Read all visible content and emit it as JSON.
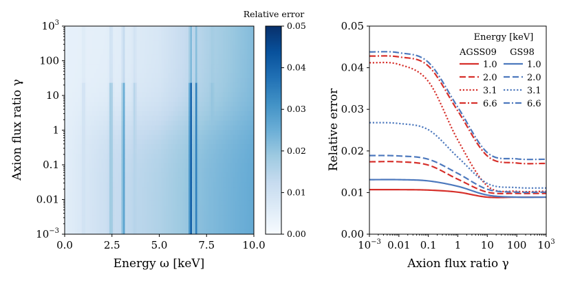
{
  "chart_data": [
    {
      "type": "heatmap",
      "title": "",
      "xlabel": "Energy ω [keV]",
      "ylabel": "Axion flux ratio γ",
      "xlim": [
        0.0,
        10.0
      ],
      "ylim": [
        0.001,
        1000
      ],
      "yscale": "log",
      "x_ticks": [
        {
          "value": 0.0,
          "label": "0.0"
        },
        {
          "value": 2.5,
          "label": "2.5"
        },
        {
          "value": 5.0,
          "label": "5.0"
        },
        {
          "value": 7.5,
          "label": "7.5"
        },
        {
          "value": 10.0,
          "label": "10.0"
        }
      ],
      "y_ticks": [
        {
          "value": 0.001,
          "label": "10",
          "sup": "−3"
        },
        {
          "value": 0.01,
          "label": "0.01",
          "sup": ""
        },
        {
          "value": 0.1,
          "label": "0.1",
          "sup": ""
        },
        {
          "value": 1,
          "label": "1",
          "sup": ""
        },
        {
          "value": 10,
          "label": "10",
          "sup": ""
        },
        {
          "value": 100,
          "label": "100",
          "sup": ""
        },
        {
          "value": 1000,
          "label": "10",
          "sup": "3"
        }
      ],
      "colorbar": {
        "title": "Relative error",
        "range": [
          0.0,
          0.05
        ],
        "ticks": [
          {
            "value": 0.0,
            "label": "0.00"
          },
          {
            "value": 0.01,
            "label": "0.01"
          },
          {
            "value": 0.02,
            "label": "0.02"
          },
          {
            "value": 0.03,
            "label": "0.03"
          },
          {
            "value": 0.04,
            "label": "0.04"
          },
          {
            "value": 0.05,
            "label": "0.05"
          }
        ],
        "colormap": [
          "#f7fbff",
          "#deebf7",
          "#c6dbef",
          "#9ecae1",
          "#6baed6",
          "#4292c6",
          "#2171b5",
          "#08519c",
          "#08306b"
        ]
      },
      "field": {
        "energy_trend": [
          {
            "energy": 0.0,
            "low_gamma": 0.005,
            "high_gamma": 0.004
          },
          {
            "energy": 2.5,
            "low_gamma": 0.012,
            "high_gamma": 0.005
          },
          {
            "energy": 5.0,
            "low_gamma": 0.016,
            "high_gamma": 0.008
          },
          {
            "energy": 7.5,
            "low_gamma": 0.022,
            "high_gamma": 0.016
          },
          {
            "energy": 10.0,
            "low_gamma": 0.026,
            "high_gamma": 0.022
          }
        ],
        "spectral_lines": [
          {
            "energy": 1.0,
            "peak": 0.01
          },
          {
            "energy": 2.45,
            "peak": 0.02
          },
          {
            "energy": 3.1,
            "peak": 0.035
          },
          {
            "energy": 3.7,
            "peak": 0.015
          },
          {
            "energy": 6.65,
            "peak": 0.05
          },
          {
            "energy": 6.95,
            "peak": 0.035
          },
          {
            "energy": 7.8,
            "peak": 0.02
          }
        ]
      }
    },
    {
      "type": "line",
      "title": "",
      "xlabel": "Axion flux ratio γ",
      "ylabel": "Relative error",
      "xscale": "log",
      "xlim": [
        0.001,
        1000
      ],
      "ylim": [
        0.0,
        0.05
      ],
      "x_ticks": [
        {
          "value": 0.001,
          "label": "10",
          "sup": "−3"
        },
        {
          "value": 0.01,
          "label": "0.01",
          "sup": ""
        },
        {
          "value": 0.1,
          "label": "0.1",
          "sup": ""
        },
        {
          "value": 1,
          "label": "1",
          "sup": ""
        },
        {
          "value": 10,
          "label": "10",
          "sup": ""
        },
        {
          "value": 100,
          "label": "100",
          "sup": ""
        },
        {
          "value": 1000,
          "label": "10",
          "sup": "3"
        }
      ],
      "y_ticks": [
        {
          "value": 0.0,
          "label": "0.00"
        },
        {
          "value": 0.01,
          "label": "0.01"
        },
        {
          "value": 0.02,
          "label": "0.02"
        },
        {
          "value": 0.03,
          "label": "0.03"
        },
        {
          "value": 0.04,
          "label": "0.04"
        },
        {
          "value": 0.05,
          "label": "0.05"
        }
      ],
      "legend": {
        "title": "Energy [keV]",
        "column_titles": [
          "AGSS09",
          "GS98"
        ],
        "placement": "top-right"
      },
      "series": [
        {
          "name": "1.0",
          "group": "AGSS09",
          "color": "#d62f2a",
          "style": "solid",
          "x": [
            0.001,
            0.01,
            0.1,
            1,
            10,
            100,
            1000
          ],
          "y": [
            0.0107,
            0.0107,
            0.0106,
            0.0101,
            0.0089,
            0.0089,
            0.0089
          ]
        },
        {
          "name": "2.0",
          "group": "AGSS09",
          "color": "#d62f2a",
          "style": "dashed",
          "x": [
            0.001,
            0.01,
            0.1,
            1,
            10,
            100,
            1000
          ],
          "y": [
            0.0174,
            0.0174,
            0.0166,
            0.0132,
            0.0101,
            0.0098,
            0.0098
          ]
        },
        {
          "name": "3.1",
          "group": "AGSS09",
          "color": "#d62f2a",
          "style": "dotted",
          "x": [
            0.001,
            0.01,
            0.1,
            1,
            10,
            100,
            1000
          ],
          "y": [
            0.0412,
            0.0408,
            0.0367,
            0.0226,
            0.0116,
            0.0103,
            0.0103
          ]
        },
        {
          "name": "6.6",
          "group": "AGSS09",
          "color": "#d62f2a",
          "style": "dashdot",
          "x": [
            0.001,
            0.01,
            0.1,
            1,
            10,
            100,
            1000
          ],
          "y": [
            0.0428,
            0.0426,
            0.0404,
            0.0296,
            0.0188,
            0.0171,
            0.017
          ]
        },
        {
          "name": "1.0",
          "group": "GS98",
          "color": "#4c78bd",
          "style": "solid",
          "x": [
            0.001,
            0.01,
            0.1,
            1,
            10,
            100,
            1000
          ],
          "y": [
            0.0131,
            0.0131,
            0.0128,
            0.0115,
            0.0094,
            0.0089,
            0.0089
          ]
        },
        {
          "name": "2.0",
          "group": "GS98",
          "color": "#4c78bd",
          "style": "dashed",
          "x": [
            0.001,
            0.01,
            0.1,
            1,
            10,
            100,
            1000
          ],
          "y": [
            0.0189,
            0.0188,
            0.018,
            0.0146,
            0.0108,
            0.0101,
            0.0101
          ]
        },
        {
          "name": "3.1",
          "group": "GS98",
          "color": "#4c78bd",
          "style": "dotted",
          "x": [
            0.001,
            0.01,
            0.1,
            1,
            10,
            100,
            1000
          ],
          "y": [
            0.0268,
            0.0266,
            0.0251,
            0.0185,
            0.0122,
            0.0112,
            0.0111
          ]
        },
        {
          "name": "6.6",
          "group": "GS98",
          "color": "#4c78bd",
          "style": "dashdot",
          "x": [
            0.001,
            0.01,
            0.1,
            1,
            10,
            100,
            1000
          ],
          "y": [
            0.0438,
            0.0436,
            0.0413,
            0.0305,
            0.0196,
            0.0181,
            0.018
          ]
        }
      ]
    }
  ]
}
